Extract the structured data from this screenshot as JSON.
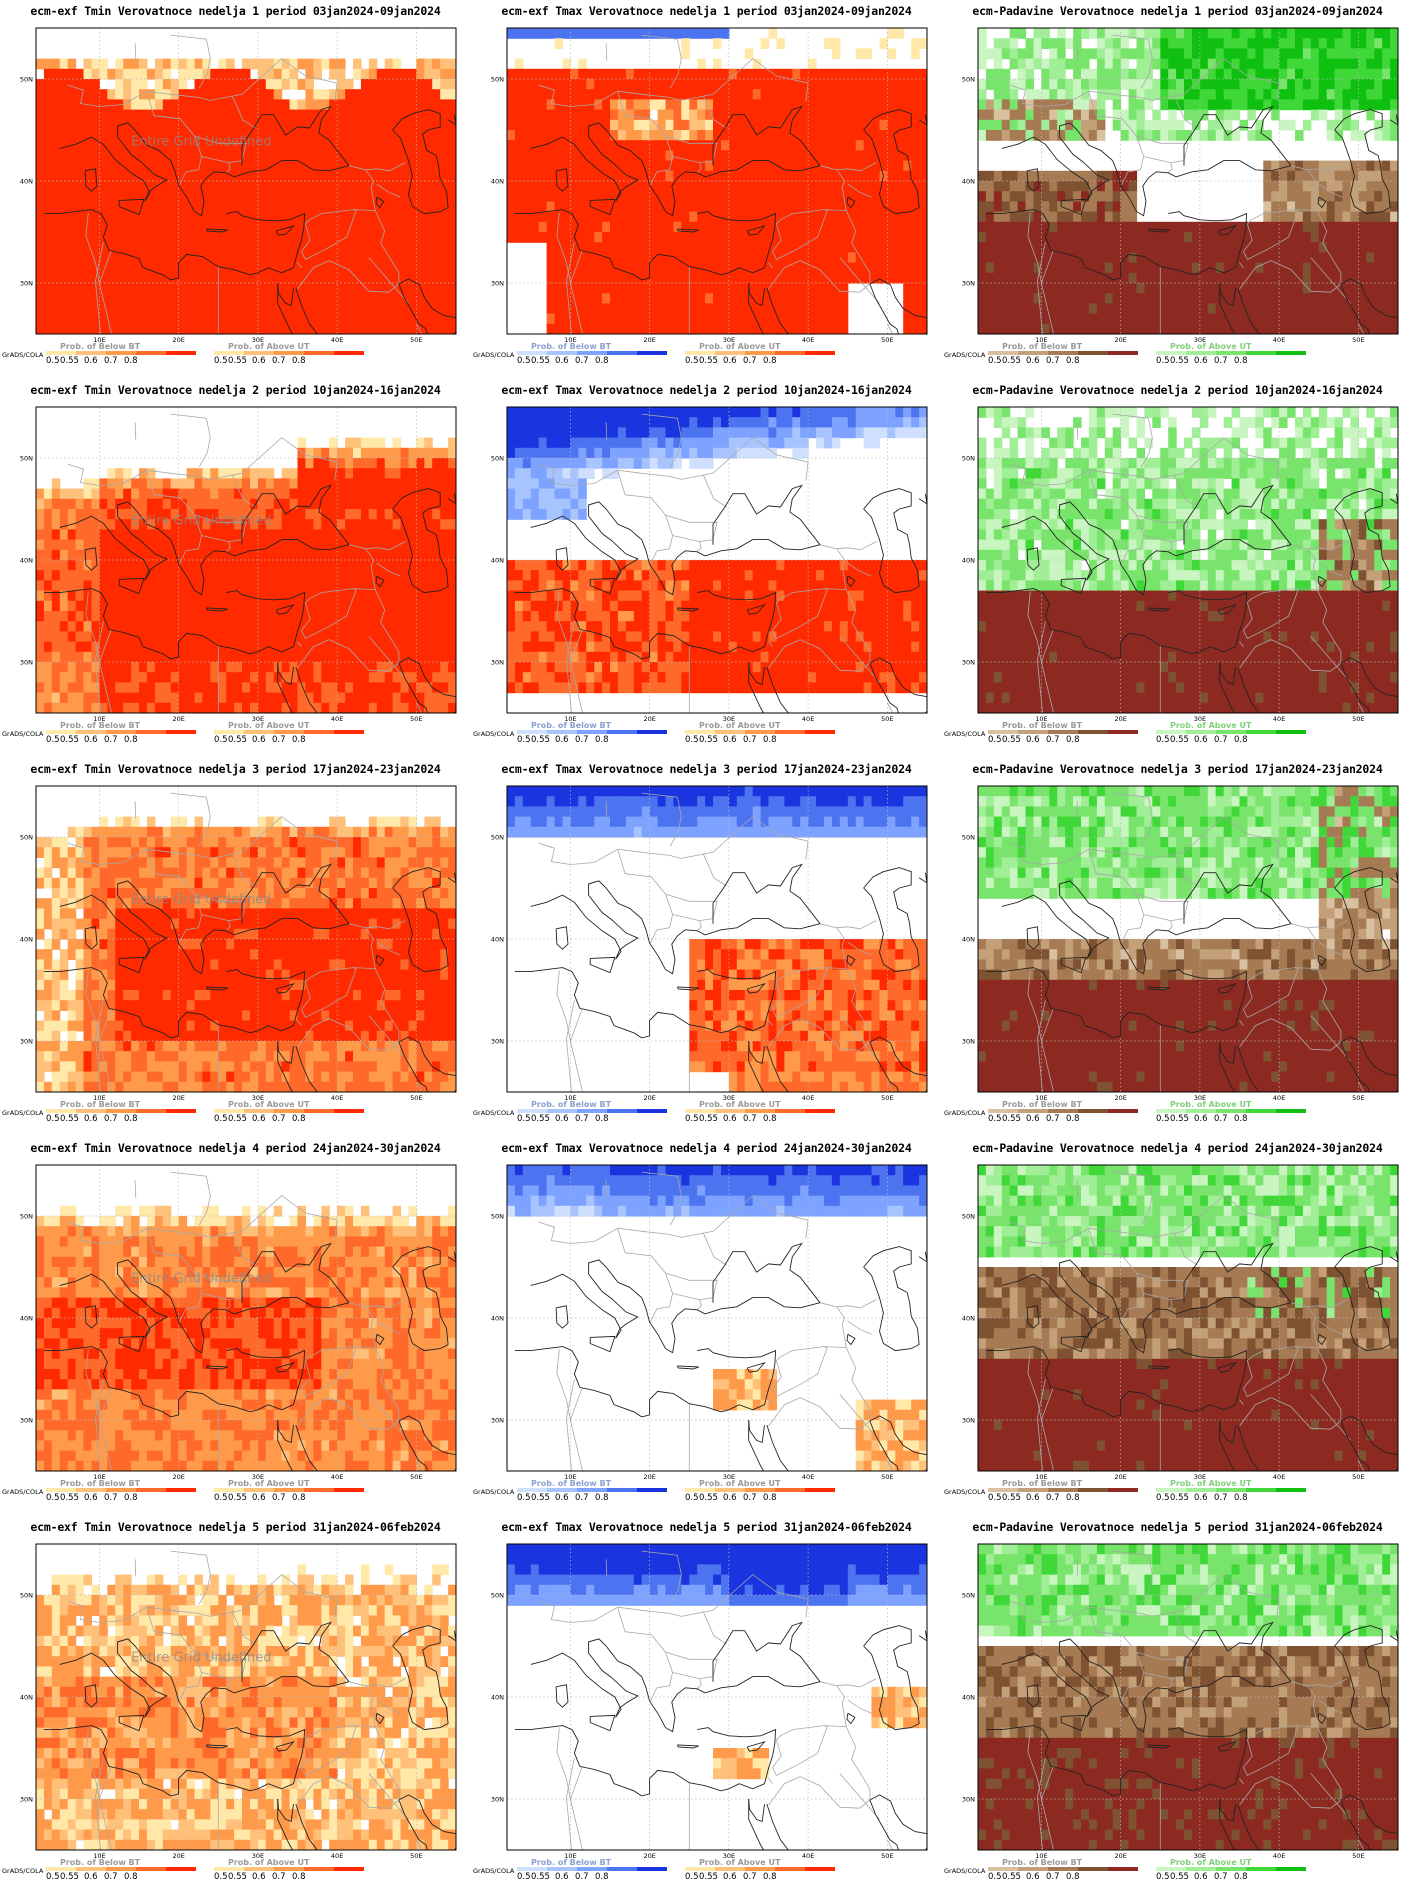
{
  "map_labels": {
    "lat": [
      "50N",
      "40N",
      "30N"
    ],
    "lon": [
      "10E",
      "20E",
      "30E",
      "40E",
      "50E"
    ],
    "undefined_note": "Entire Grid Undefined",
    "grads_tag": "GrADS/COLA"
  },
  "legend": {
    "below_title": "Prob. of Below BT",
    "above_title": "Prob. of Above UT",
    "ticks": [
      "0.5",
      "0.55",
      "0.6",
      "0.7",
      "0.8"
    ],
    "colors": {
      "tmin_below": [
        "#ffe8a8",
        "#ffc07a",
        "#ff9a4a",
        "#ff6a2a",
        "#ff2a00"
      ],
      "tmin_above": [
        "#ffe8a8",
        "#ffc07a",
        "#ff9a4a",
        "#ff6a2a",
        "#ff2a00"
      ],
      "tmax_below": [
        "#cfe0ff",
        "#a8c4ff",
        "#7da2ff",
        "#4d74f0",
        "#1a34e0"
      ],
      "tmax_above": [
        "#ffe8a8",
        "#ffc07a",
        "#ff9a4a",
        "#ff6a2a",
        "#ff2a00"
      ],
      "prec_below": [
        "#d9c0a0",
        "#c4a078",
        "#a67a52",
        "#7f5232",
        "#8c2a22"
      ],
      "prec_above": [
        "#c8f5c0",
        "#a0ee96",
        "#78e46c",
        "#40d838",
        "#10c010"
      ]
    }
  },
  "panels": [
    {
      "title": "ecm-exf Tmin Verovatnoce nedelja 1 period 03jan2024-09jan2024",
      "var": "tmin",
      "week": 1
    },
    {
      "title": "ecm-exf Tmax Verovatnoce nedelja 1 period 03jan2024-09jan2024",
      "var": "tmax",
      "week": 1
    },
    {
      "title": "ecm-Padavine Verovatnoce nedelja 1 period 03jan2024-09jan2024",
      "var": "prec",
      "week": 1
    },
    {
      "title": "ecm-exf Tmin Verovatnoce nedelja 2 period 10jan2024-16jan2024",
      "var": "tmin",
      "week": 2
    },
    {
      "title": "ecm-exf Tmax Verovatnoce nedelja 2 period 10jan2024-16jan2024",
      "var": "tmax",
      "week": 2
    },
    {
      "title": "ecm-Padavine Verovatnoce nedelja 2 period 10jan2024-16jan2024",
      "var": "prec",
      "week": 2
    },
    {
      "title": "ecm-exf Tmin Verovatnoce nedelja 3 period 17jan2024-23jan2024",
      "var": "tmin",
      "week": 3
    },
    {
      "title": "ecm-exf Tmax Verovatnoce nedelja 3 period 17jan2024-23jan2024",
      "var": "tmax",
      "week": 3
    },
    {
      "title": "ecm-Padavine Verovatnoce nedelja 3 period 17jan2024-23jan2024",
      "var": "prec",
      "week": 3
    },
    {
      "title": "ecm-exf Tmin Verovatnoce nedelja 4 period 24jan2024-30jan2024",
      "var": "tmin",
      "week": 4
    },
    {
      "title": "ecm-exf Tmax Verovatnoce nedelja 4 period 24jan2024-30jan2024",
      "var": "tmax",
      "week": 4
    },
    {
      "title": "ecm-Padavine Verovatnoce nedelja 4 period 24jan2024-30jan2024",
      "var": "prec",
      "week": 4
    },
    {
      "title": "ecm-exf Tmin Verovatnoce nedelja 5 period 31jan2024-06feb2024",
      "var": "tmin",
      "week": 5
    },
    {
      "title": "ecm-exf Tmax Verovatnoce nedelja 5 period 31jan2024-06feb2024",
      "var": "tmax",
      "week": 5
    },
    {
      "title": "ecm-Padavine Verovatnoce nedelja 5 period 31jan2024-06feb2024",
      "var": "prec",
      "week": 5
    }
  ]
}
